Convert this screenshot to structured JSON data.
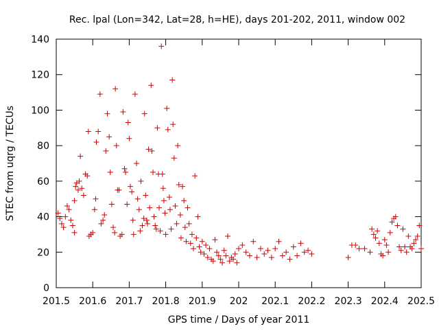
{
  "chart_data": {
    "type": "scatter",
    "title": "Rec. lpal (Lon=342, Lat=28, h=HE), days 201-202, 2011, window 002",
    "xlabel": "GPS time / Days of year 2011",
    "ylabel": "STEC from uqrg / TECUs",
    "xlim": [
      201.5,
      202.5
    ],
    "ylim": [
      0,
      140
    ],
    "xticks": [
      201.5,
      201.6,
      201.7,
      201.8,
      201.9,
      202,
      202.1,
      202.2,
      202.3,
      202.4,
      202.5
    ],
    "xtick_labels": [
      "201.5",
      "201.6",
      "201.7",
      "201.8",
      "201.9",
      "202",
      "202.1",
      "202.2",
      "202.3",
      "202.4",
      "202.5"
    ],
    "yticks": [
      0,
      20,
      40,
      60,
      80,
      100,
      120,
      140
    ],
    "ytick_labels": [
      "0",
      "20",
      "40",
      "60",
      "80",
      "100",
      "120",
      "140"
    ],
    "grid": false,
    "marker": "+",
    "color": "#cc0000",
    "series": [
      {
        "name": "STEC",
        "points": [
          [
            201.505,
            42
          ],
          [
            201.51,
            39
          ],
          [
            201.515,
            36
          ],
          [
            201.52,
            34
          ],
          [
            201.525,
            40
          ],
          [
            201.53,
            46
          ],
          [
            201.535,
            44
          ],
          [
            201.54,
            38
          ],
          [
            201.545,
            35
          ],
          [
            201.55,
            31
          ],
          [
            201.55,
            49
          ],
          [
            201.553,
            57
          ],
          [
            201.556,
            59
          ],
          [
            201.56,
            55
          ],
          [
            201.563,
            60
          ],
          [
            201.566,
            74
          ],
          [
            201.57,
            56
          ],
          [
            201.575,
            52
          ],
          [
            201.58,
            64
          ],
          [
            201.585,
            63
          ],
          [
            201.588,
            88
          ],
          [
            201.59,
            29
          ],
          [
            201.595,
            30
          ],
          [
            201.6,
            31
          ],
          [
            201.605,
            44
          ],
          [
            201.608,
            50
          ],
          [
            201.61,
            82
          ],
          [
            201.615,
            88
          ],
          [
            201.62,
            109
          ],
          [
            201.623,
            36
          ],
          [
            201.628,
            38
          ],
          [
            201.632,
            41
          ],
          [
            201.636,
            77
          ],
          [
            201.64,
            98
          ],
          [
            201.645,
            85
          ],
          [
            201.648,
            65
          ],
          [
            201.652,
            47
          ],
          [
            201.656,
            34
          ],
          [
            201.66,
            31
          ],
          [
            201.662,
            112
          ],
          [
            201.665,
            80
          ],
          [
            201.668,
            55
          ],
          [
            201.672,
            55
          ],
          [
            201.675,
            29
          ],
          [
            201.68,
            30
          ],
          [
            201.683,
            99
          ],
          [
            201.687,
            67
          ],
          [
            201.69,
            65
          ],
          [
            201.694,
            47
          ],
          [
            201.697,
            93
          ],
          [
            201.7,
            84
          ],
          [
            201.703,
            57
          ],
          [
            201.707,
            54
          ],
          [
            201.71,
            38
          ],
          [
            201.712,
            30
          ],
          [
            201.716,
            109
          ],
          [
            201.72,
            70
          ],
          [
            201.723,
            50
          ],
          [
            201.727,
            44
          ],
          [
            201.73,
            32
          ],
          [
            201.732,
            60
          ],
          [
            201.736,
            35
          ],
          [
            201.74,
            39
          ],
          [
            201.742,
            98
          ],
          [
            201.745,
            52
          ],
          [
            201.748,
            38
          ],
          [
            201.75,
            36
          ],
          [
            201.753,
            78
          ],
          [
            201.756,
            45
          ],
          [
            201.76,
            114
          ],
          [
            201.762,
            77
          ],
          [
            201.765,
            65
          ],
          [
            201.768,
            40
          ],
          [
            201.771,
            35
          ],
          [
            201.774,
            33
          ],
          [
            201.777,
            90
          ],
          [
            201.78,
            64
          ],
          [
            201.782,
            45
          ],
          [
            201.785,
            32
          ],
          [
            201.788,
            136
          ],
          [
            201.791,
            64
          ],
          [
            201.793,
            56
          ],
          [
            201.795,
            49
          ],
          [
            201.798,
            42
          ],
          [
            201.8,
            30
          ],
          [
            201.803,
            101
          ],
          [
            201.806,
            89
          ],
          [
            201.81,
            51
          ],
          [
            201.812,
            44
          ],
          [
            201.815,
            33
          ],
          [
            201.818,
            117
          ],
          [
            201.82,
            92
          ],
          [
            201.823,
            73
          ],
          [
            201.826,
            46
          ],
          [
            201.83,
            36
          ],
          [
            201.833,
            80
          ],
          [
            201.836,
            58
          ],
          [
            201.84,
            41
          ],
          [
            201.842,
            28
          ],
          [
            201.846,
            57
          ],
          [
            201.85,
            49
          ],
          [
            201.853,
            34
          ],
          [
            201.856,
            26
          ],
          [
            201.86,
            45
          ],
          [
            201.864,
            36
          ],
          [
            201.868,
            25
          ],
          [
            201.872,
            30
          ],
          [
            201.876,
            22
          ],
          [
            201.88,
            63
          ],
          [
            201.884,
            28
          ],
          [
            201.888,
            40
          ],
          [
            201.892,
            23
          ],
          [
            201.896,
            20
          ],
          [
            201.9,
            26
          ],
          [
            201.905,
            19
          ],
          [
            201.91,
            24
          ],
          [
            201.915,
            17
          ],
          [
            201.92,
            22
          ],
          [
            201.925,
            16
          ],
          [
            201.93,
            15
          ],
          [
            201.935,
            27
          ],
          [
            201.94,
            20
          ],
          [
            201.945,
            18
          ],
          [
            201.95,
            16
          ],
          [
            201.955,
            14
          ],
          [
            201.96,
            21
          ],
          [
            201.965,
            18
          ],
          [
            201.97,
            29
          ],
          [
            201.975,
            15
          ],
          [
            201.98,
            17
          ],
          [
            201.985,
            16
          ],
          [
            201.99,
            19
          ],
          [
            201.995,
            14
          ],
          [
            202.0,
            22
          ],
          [
            202.01,
            24
          ],
          [
            202.02,
            20
          ],
          [
            202.03,
            18
          ],
          [
            202.04,
            26
          ],
          [
            202.05,
            17
          ],
          [
            202.06,
            22
          ],
          [
            202.07,
            19
          ],
          [
            202.08,
            21
          ],
          [
            202.09,
            17
          ],
          [
            202.1,
            22
          ],
          [
            202.11,
            26
          ],
          [
            202.12,
            18
          ],
          [
            202.13,
            20
          ],
          [
            202.14,
            16
          ],
          [
            202.15,
            23
          ],
          [
            202.16,
            18
          ],
          [
            202.17,
            25
          ],
          [
            202.18,
            20
          ],
          [
            202.19,
            21
          ],
          [
            202.2,
            19
          ],
          [
            202.3,
            17
          ],
          [
            202.31,
            24
          ],
          [
            202.32,
            24
          ],
          [
            202.33,
            22
          ],
          [
            202.345,
            22
          ],
          [
            202.36,
            20
          ],
          [
            202.365,
            33
          ],
          [
            202.37,
            30
          ],
          [
            202.375,
            28
          ],
          [
            202.38,
            32
          ],
          [
            202.385,
            25
          ],
          [
            202.39,
            19
          ],
          [
            202.395,
            18
          ],
          [
            202.4,
            27
          ],
          [
            202.405,
            24
          ],
          [
            202.41,
            20
          ],
          [
            202.415,
            31
          ],
          [
            202.42,
            37
          ],
          [
            202.425,
            39
          ],
          [
            202.43,
            40
          ],
          [
            202.435,
            35
          ],
          [
            202.44,
            23
          ],
          [
            202.445,
            21
          ],
          [
            202.45,
            33
          ],
          [
            202.455,
            23
          ],
          [
            202.46,
            20
          ],
          [
            202.465,
            29
          ],
          [
            202.47,
            23
          ],
          [
            202.475,
            22
          ],
          [
            202.48,
            25
          ],
          [
            202.485,
            27
          ],
          [
            202.49,
            29
          ],
          [
            202.495,
            35
          ],
          [
            202.5,
            22
          ]
        ]
      }
    ]
  }
}
